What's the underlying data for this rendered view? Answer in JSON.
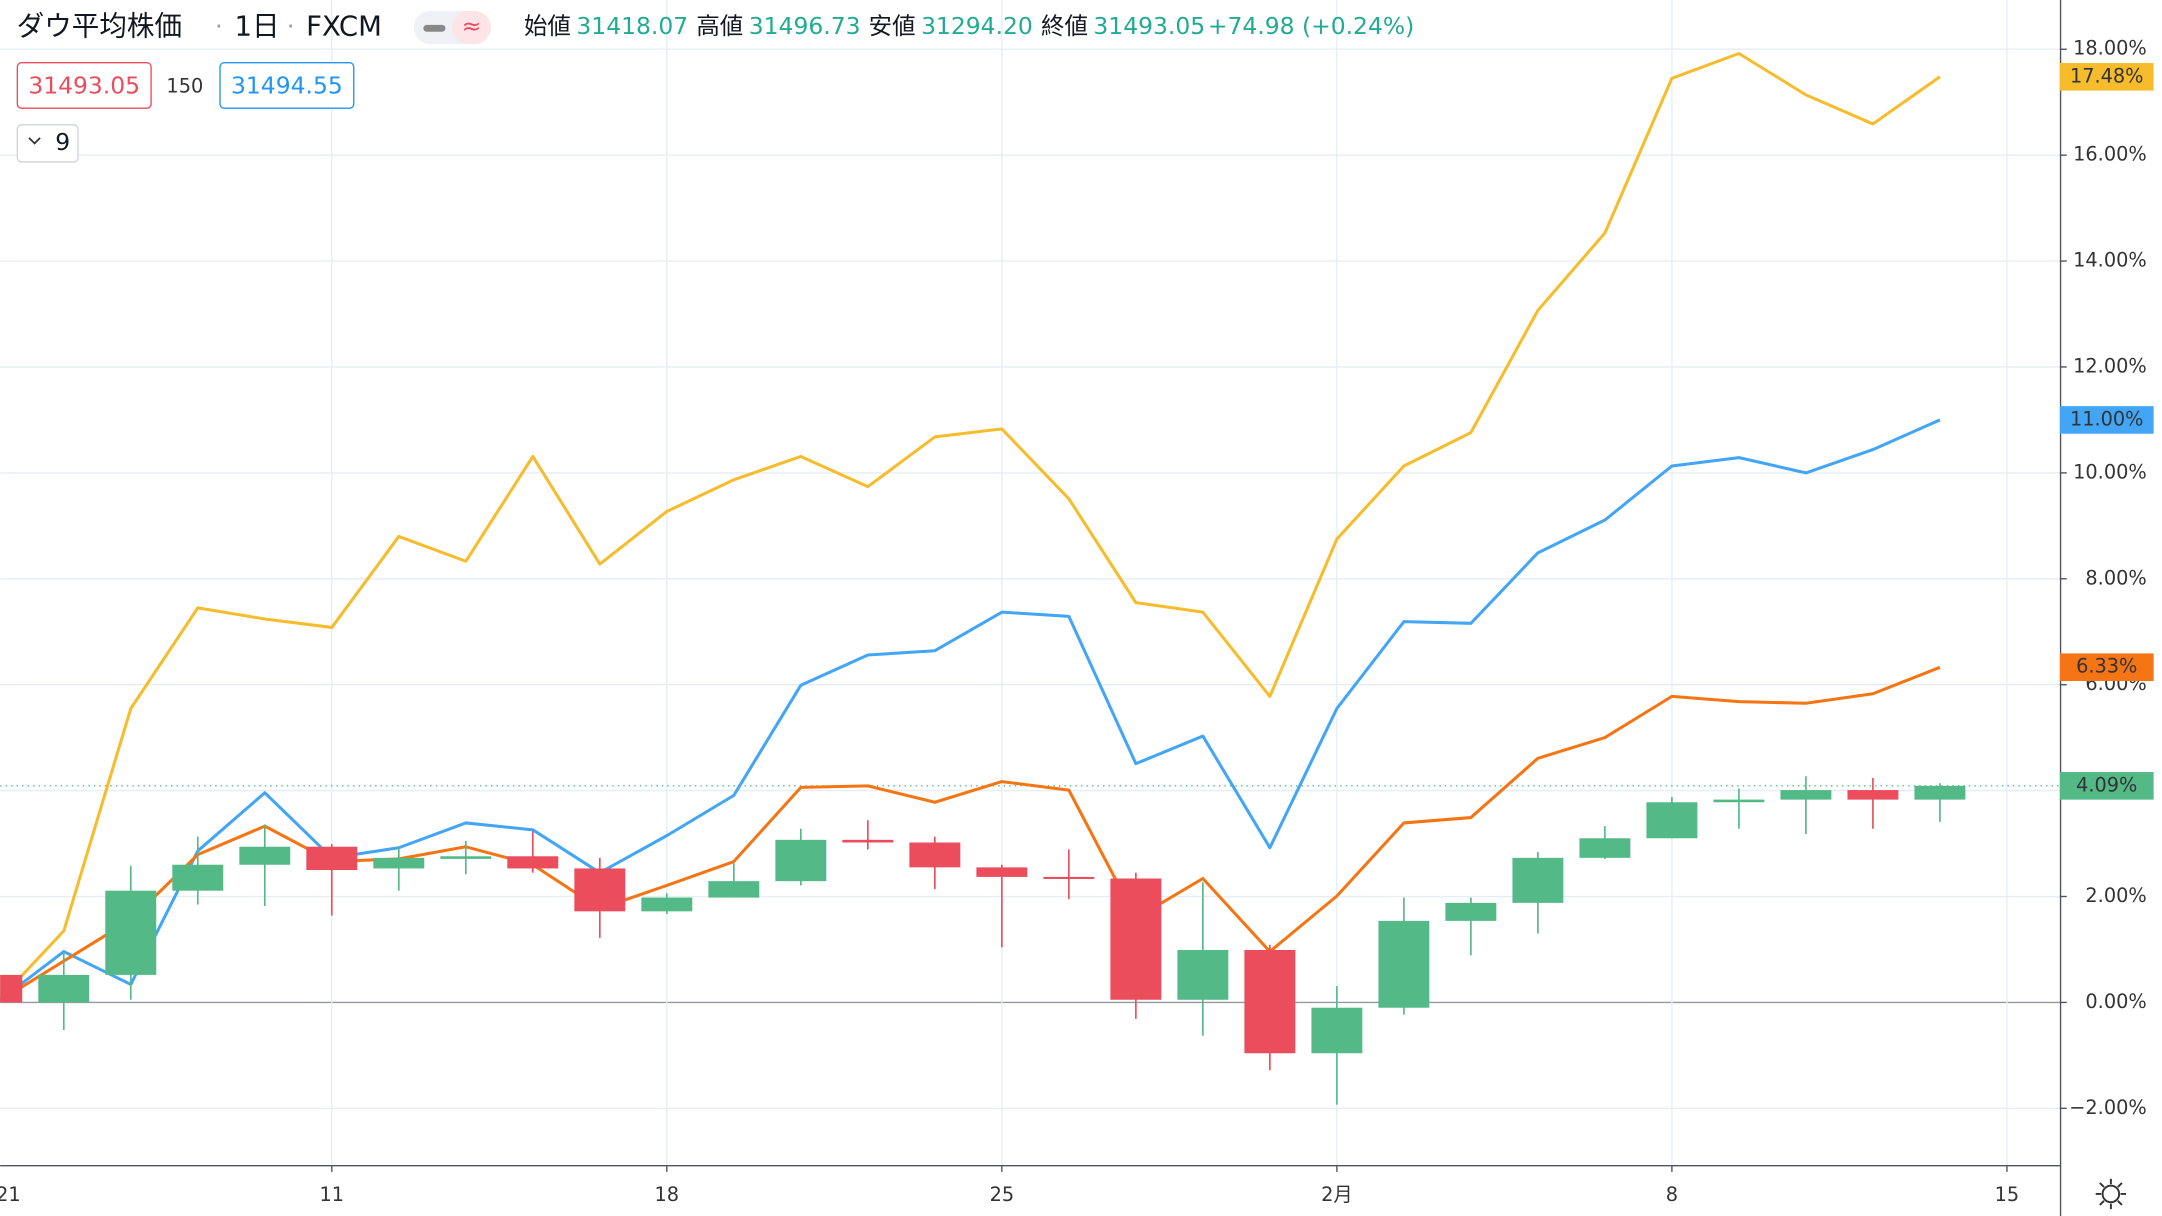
{
  "header": {
    "symbol": "ダウ平均株価",
    "interval": "1日",
    "source": "FXCM",
    "ohlc": [
      {
        "label": "始値",
        "value": "31418.07"
      },
      {
        "label": "高値",
        "value": "31496.73"
      },
      {
        "label": "安値",
        "value": "31294.20"
      },
      {
        "label": "終値",
        "value": "31493.05"
      }
    ],
    "change": "+74.98 (+0.24%)",
    "bid": "31493.05",
    "spread": "150",
    "ask": "31494.55",
    "indicators": "9"
  },
  "chart_data": {
    "type": "candlestick",
    "x": [
      0,
      1,
      2,
      3,
      4,
      5,
      6,
      7,
      8,
      9,
      10,
      11,
      12,
      13,
      14,
      15,
      16,
      17,
      18,
      19,
      20,
      21,
      22,
      23,
      24,
      25,
      26,
      27,
      28,
      29
    ],
    "xlim": [
      0.05,
      30.79
    ],
    "xticks": [
      {
        "value": 0,
        "label": "21"
      },
      {
        "value": 5,
        "label": "11"
      },
      {
        "value": 10,
        "label": "18"
      },
      {
        "value": 15,
        "label": "25"
      },
      {
        "value": 20,
        "label": "2月"
      },
      {
        "value": 25,
        "label": "8"
      },
      {
        "value": 30,
        "label": "15"
      }
    ],
    "ylim": [
      -3.07,
      18.93
    ],
    "yticks": [
      {
        "value": -2,
        "label": "−2.00%"
      },
      {
        "value": 0,
        "label": "0.00%"
      },
      {
        "value": 2,
        "label": "2.00%"
      },
      {
        "value": 4,
        "label": "4.00%"
      },
      {
        "value": 6,
        "label": "6.00%"
      },
      {
        "value": 8,
        "label": "8.00%"
      },
      {
        "value": 10,
        "label": "10.00%"
      },
      {
        "value": 12,
        "label": "12.00%"
      },
      {
        "value": 14,
        "label": "14.00%"
      },
      {
        "value": 16,
        "label": "16.00%"
      },
      {
        "value": 18,
        "label": "18.00%"
      }
    ],
    "grid": true,
    "up_color": "#53b987",
    "down_color": "#eb4d5c",
    "open": [
      0.52,
      0,
      0.52,
      2.11,
      2.6,
      2.94,
      2.53,
      2.71,
      2.76,
      2.53,
      1.72,
      1.98,
      2.29,
      3.07,
      3.02,
      2.55,
      2.37,
      2.34,
      0.05,
      0.99,
      -0.96,
      -0.1,
      1.54,
      1.88,
      2.73,
      3.1,
      3.78,
      3.83,
      4.01,
      3.83
    ],
    "high": [
      0.57,
      0.96,
      2.58,
      3.13,
      3.36,
      2.99,
      2.94,
      3.05,
      3.23,
      2.73,
      2.06,
      2.63,
      3.28,
      3.44,
      3.13,
      2.6,
      2.89,
      2.45,
      2.27,
      1.09,
      0.31,
      1.98,
      1.98,
      2.84,
      3.33,
      3.88,
      4.04,
      4.27,
      4.24,
      4.14
    ],
    "low": [
      0,
      -0.52,
      0.05,
      1.85,
      1.82,
      1.64,
      2.11,
      2.42,
      2.45,
      1.22,
      1.67,
      1.98,
      2.21,
      2.89,
      2.14,
      1.04,
      1.95,
      -0.31,
      -0.63,
      -1.28,
      -1.93,
      -0.23,
      0.89,
      1.3,
      2.71,
      3.1,
      3.28,
      3.18,
      3.28,
      3.41
    ],
    "close": [
      0,
      0.52,
      2.11,
      2.6,
      2.94,
      2.5,
      2.73,
      2.76,
      2.53,
      1.72,
      1.98,
      2.29,
      3.07,
      3.02,
      2.55,
      2.37,
      2.34,
      0.05,
      0.99,
      -0.96,
      -0.1,
      1.54,
      1.88,
      2.73,
      3.1,
      3.78,
      3.83,
      4.01,
      3.83,
      4.09
    ],
    "last_label": "4.09%",
    "series": [
      {
        "type": "line",
        "color": "#f6bc2c",
        "last_label": "17.48%",
        "values": [
          0,
          1.35,
          5.55,
          7.45,
          7.24,
          7.08,
          8.8,
          8.33,
          10.31,
          8.28,
          9.27,
          9.87,
          10.31,
          9.74,
          10.68,
          10.83,
          9.51,
          7.55,
          7.37,
          5.78,
          8.75,
          10.13,
          10.76,
          13.07,
          14.53,
          17.45,
          17.92,
          17.14,
          16.59,
          17.48
        ]
      },
      {
        "type": "line",
        "color": "#42a5f5",
        "last_label": "11.00%",
        "values": [
          0,
          0.96,
          0.34,
          2.86,
          3.96,
          2.73,
          2.92,
          3.39,
          3.26,
          2.45,
          3.15,
          3.91,
          5.99,
          6.56,
          6.64,
          7.37,
          7.29,
          4.51,
          5.03,
          2.92,
          5.55,
          7.19,
          7.16,
          8.49,
          9.11,
          10.13,
          10.29,
          10.0,
          10.44,
          11.0
        ]
      },
      {
        "type": "line",
        "color": "#f57514",
        "last_label": "6.33%",
        "values": [
          0,
          0.78,
          1.56,
          2.79,
          3.33,
          2.66,
          2.71,
          2.94,
          2.6,
          1.77,
          2.21,
          2.66,
          4.06,
          4.09,
          3.78,
          4.17,
          4.01,
          1.59,
          2.34,
          0.96,
          2.01,
          3.39,
          3.49,
          4.61,
          5.0,
          5.78,
          5.68,
          5.65,
          5.83,
          6.33
        ]
      }
    ]
  }
}
